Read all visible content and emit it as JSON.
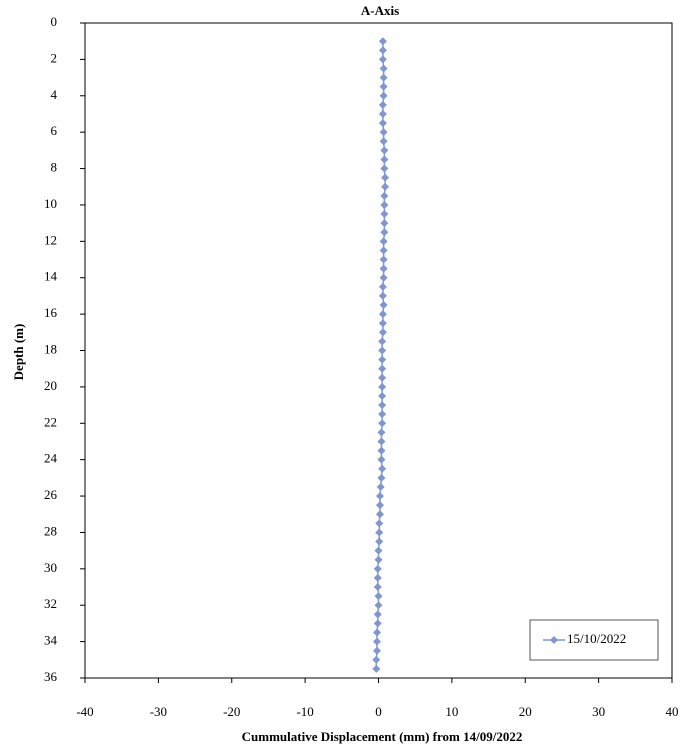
{
  "chart_data": {
    "type": "line",
    "title": "A-Axis",
    "x_label": "Cummulative Displacement (mm) from 14/09/2022",
    "y_label": "Depth (m)",
    "xlim": [
      -40,
      40
    ],
    "xticks": [
      -40,
      -30,
      -20,
      -10,
      0,
      10,
      20,
      30,
      40
    ],
    "ylim": [
      36,
      0
    ],
    "yticks": [
      0,
      2,
      4,
      6,
      8,
      10,
      12,
      14,
      16,
      18,
      20,
      22,
      24,
      26,
      28,
      30,
      32,
      34,
      36
    ],
    "grid": false,
    "legend": "lower right",
    "series": [
      {
        "name": "15/10/2022",
        "color": "#7f96cf",
        "x": [
          0.6,
          0.6,
          0.6,
          0.7,
          0.7,
          0.7,
          0.7,
          0.6,
          0.6,
          0.6,
          0.7,
          0.7,
          0.8,
          0.8,
          0.8,
          0.9,
          0.9,
          0.8,
          0.8,
          0.8,
          0.8,
          0.8,
          0.7,
          0.7,
          0.7,
          0.7,
          0.7,
          0.6,
          0.6,
          0.7,
          0.6,
          0.6,
          0.6,
          0.5,
          0.5,
          0.5,
          0.5,
          0.5,
          0.5,
          0.5,
          0.5,
          0.5,
          0.5,
          0.4,
          0.4,
          0.4,
          0.4,
          0.5,
          0.4,
          0.3,
          0.2,
          0.2,
          0.2,
          0.1,
          0.1,
          0.1,
          0,
          0,
          -0.1,
          -0.1,
          -0.1,
          0,
          0,
          -0.1,
          -0.1,
          -0.2,
          -0.2,
          -0.2,
          -0.3,
          -0.3
        ],
        "y": [
          1,
          1.5,
          2,
          2.5,
          3,
          3.5,
          4,
          4.5,
          5,
          5.5,
          6,
          6.5,
          7,
          7.5,
          8,
          8.5,
          9,
          9.5,
          10,
          10.5,
          11,
          11.5,
          12,
          12.5,
          13,
          13.5,
          14,
          14.5,
          15,
          15.5,
          16,
          16.5,
          17,
          17.5,
          18,
          18.5,
          19,
          19.5,
          20,
          20.5,
          21,
          21.5,
          22,
          22.5,
          23,
          23.5,
          24,
          24.5,
          25,
          25.5,
          26,
          26.5,
          27,
          27.5,
          28,
          28.5,
          29,
          29.5,
          30,
          30.5,
          31,
          31.5,
          32,
          32.5,
          33,
          33.5,
          34,
          34.5,
          35,
          35.5
        ]
      }
    ]
  }
}
